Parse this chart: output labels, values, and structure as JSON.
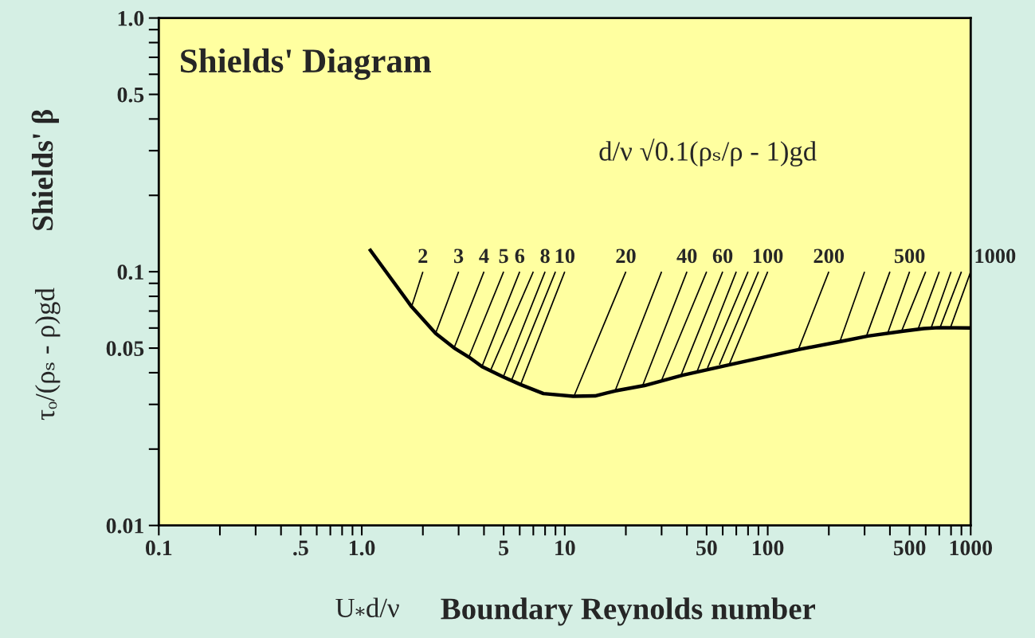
{
  "chart_data": {
    "type": "line",
    "title": "Shields' Diagram",
    "xlabel": "Boundary Reynolds number",
    "ylabel": "Shields' β",
    "annotations": [
      "τₒ/(ρₛ - ρ)gd",
      "U$_{*}$d/ν",
      "d/ν √0.1(ρₛ/ρ - 1)gd"
    ],
    "log": "xy",
    "xlim": [
      0.1,
      1000
    ],
    "ylim": [
      0.01,
      1
    ],
    "xticks": [
      0.1,
      {
        "value": 0.2,
        "label": null
      },
      {
        "value": 0.3,
        "label": null
      },
      {
        "value": 0.4,
        "label": null
      },
      {
        "value": 0.5,
        "label": ".5"
      },
      {
        "value": 0.6,
        "label": null
      },
      {
        "value": 0.7,
        "label": null
      },
      {
        "value": 0.8,
        "label": null
      },
      {
        "value": 0.9,
        "label": null
      },
      {
        "value": 1,
        "label": "1.0"
      },
      {
        "value": 2,
        "label": null
      },
      {
        "value": 3,
        "label": null
      },
      {
        "value": 4,
        "label": null
      },
      5,
      {
        "value": 6,
        "label": null
      },
      {
        "value": 7,
        "label": null
      },
      {
        "value": 8,
        "label": null
      },
      {
        "value": 9,
        "label": null
      },
      10,
      {
        "value": 20,
        "label": null
      },
      {
        "value": 30,
        "label": null
      },
      {
        "value": 40,
        "label": null
      },
      50,
      {
        "value": 60,
        "label": null
      },
      {
        "value": 70,
        "label": null
      },
      {
        "value": 80,
        "label": null
      },
      {
        "value": 90,
        "label": null
      },
      100,
      {
        "value": 200,
        "label": null
      },
      {
        "value": 300,
        "label": null
      },
      {
        "value": 400,
        "label": null
      },
      500,
      {
        "value": 600,
        "label": null
      },
      {
        "value": 700,
        "label": null
      },
      {
        "value": 800,
        "label": null
      },
      {
        "value": 900,
        "label": null
      },
      1000
    ],
    "yticks": [
      0.01,
      {
        "value": 0.02,
        "label": null
      },
      {
        "value": 0.03,
        "label": null
      },
      {
        "value": 0.04,
        "label": null
      },
      0.05,
      {
        "value": 0.06,
        "label": null
      },
      {
        "value": 0.07,
        "label": null
      },
      {
        "value": 0.08,
        "label": null
      },
      {
        "value": 0.09,
        "label": null
      },
      0.1,
      {
        "value": 0.2,
        "label": null
      },
      {
        "value": 0.3,
        "label": null
      },
      {
        "value": 0.4,
        "label": null
      },
      0.5,
      {
        "value": 0.6,
        "label": null
      },
      {
        "value": 0.7,
        "label": null
      },
      {
        "value": 0.8,
        "label": null
      },
      {
        "value": 0.9,
        "label": null
      },
      {
        "value": 1,
        "label": "1.0"
      }
    ],
    "series": [
      {
        "color": "#000000",
        "x": [
          1.09,
          1.38,
          1.76,
          2.31,
          2.85,
          3.37,
          3.91,
          4.98,
          6.06,
          7.85,
          11,
          14.1,
          17.7,
          24.7,
          38,
          65,
          145,
          231,
          312,
          465,
          587,
          694,
          1000
        ],
        "values": [
          0.123,
          0.095,
          0.0728,
          0.0572,
          0.0501,
          0.0461,
          0.0423,
          0.0385,
          0.0359,
          0.0331,
          0.0323,
          0.0324,
          0.0339,
          0.0356,
          0.0391,
          0.043,
          0.0495,
          0.0532,
          0.0558,
          0.0583,
          0.0597,
          0.0602,
          0.06
        ]
      },
      {
        "name": "2",
        "color": "#000000",
        "x": [
          1.76,
          2
        ],
        "values": [
          0.0728,
          0.1
        ]
      },
      {
        "name": "3",
        "color": "#000000",
        "x": [
          2.31,
          3
        ],
        "values": [
          0.0572,
          0.1
        ]
      },
      {
        "name": "4",
        "color": "#000000",
        "x": [
          2.85,
          4
        ],
        "values": [
          0.0501,
          0.1
        ]
      },
      {
        "name": "5",
        "color": "#000000",
        "x": [
          3.37,
          5
        ],
        "values": [
          0.0461,
          0.1
        ]
      },
      {
        "name": "6",
        "color": "#000000",
        "x": [
          3.91,
          6
        ],
        "values": [
          0.0423,
          0.1
        ]
      },
      {
        "color": "#000000",
        "x": [
          4.28,
          7
        ],
        "values": [
          0.0403,
          0.1
        ]
      },
      {
        "name": "8",
        "color": "#000000",
        "x": [
          4.98,
          8
        ],
        "values": [
          0.0385,
          0.1
        ]
      },
      {
        "color": "#000000",
        "x": [
          5.45,
          9
        ],
        "values": [
          0.0371,
          0.1
        ]
      },
      {
        "name": "10",
        "color": "#000000",
        "x": [
          6.06,
          10
        ],
        "values": [
          0.0359,
          0.1
        ]
      },
      {
        "name": "20",
        "color": "#000000",
        "x": [
          11.1,
          20
        ],
        "values": [
          0.0323,
          0.1
        ]
      },
      {
        "color": "#000000",
        "x": [
          17.7,
          30
        ],
        "values": [
          0.0339,
          0.1
        ]
      },
      {
        "name": "40",
        "color": "#000000",
        "x": [
          24.2,
          40
        ],
        "values": [
          0.0356,
          0.1
        ]
      },
      {
        "color": "#000000",
        "x": [
          30.1,
          50
        ],
        "values": [
          0.0376,
          0.1
        ]
      },
      {
        "name": "60",
        "color": "#000000",
        "x": [
          37.4,
          60
        ],
        "values": [
          0.0391,
          0.1
        ]
      },
      {
        "color": "#000000",
        "x": [
          45,
          70
        ],
        "values": [
          0.0407,
          0.1
        ]
      },
      {
        "color": "#000000",
        "x": [
          50.5,
          80
        ],
        "values": [
          0.0418,
          0.1
        ]
      },
      {
        "color": "#000000",
        "x": [
          57.8,
          90
        ],
        "values": [
          0.043,
          0.1
        ]
      },
      {
        "name": "100",
        "color": "#000000",
        "x": [
          64.9,
          100
        ],
        "values": [
          0.0435,
          0.1
        ]
      },
      {
        "name": "200",
        "color": "#000000",
        "x": [
          142,
          200
        ],
        "values": [
          0.0497,
          0.1
        ]
      },
      {
        "color": "#000000",
        "x": [
          227,
          300
        ],
        "values": [
          0.0532,
          0.1
        ]
      },
      {
        "color": "#000000",
        "x": [
          306,
          400
        ],
        "values": [
          0.0556,
          0.1
        ]
      },
      {
        "name": "500",
        "color": "#000000",
        "x": [
          391,
          500
        ],
        "values": [
          0.0576,
          0.1
        ]
      },
      {
        "color": "#000000",
        "x": [
          458,
          600
        ],
        "values": [
          0.0587,
          0.1
        ]
      },
      {
        "color": "#000000",
        "x": [
          553,
          700
        ],
        "values": [
          0.06,
          0.1
        ]
      },
      {
        "color": "#000000",
        "x": [
          639,
          800
        ],
        "values": [
          0.0602,
          0.1
        ]
      },
      {
        "color": "#000000",
        "x": [
          706,
          900
        ],
        "values": [
          0.0602,
          0.1
        ]
      },
      {
        "name": "1000",
        "color": "#000000",
        "x": [
          794,
          1000
        ],
        "values": [
          0.0601,
          0.1
        ]
      }
    ]
  }
}
